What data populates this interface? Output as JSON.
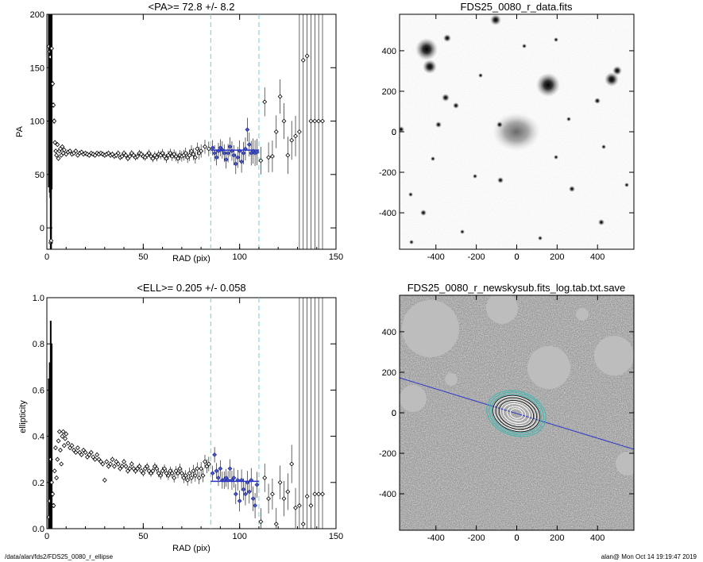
{
  "footer": {
    "path": "/data/alan/fds2/FDS25_0080_r_ellipse",
    "stamp": "alan@  Mon Oct 14 19:19:47 2019"
  },
  "chart_data": [
    {
      "type": "scatter",
      "panel": "pa-profile",
      "title": "<PA>=  72.8 +/-   8.2",
      "xlabel": "RAD (pix)",
      "ylabel": "PA",
      "xlim": [
        0,
        150
      ],
      "ylim": [
        -20,
        200
      ],
      "xticks": [
        "0",
        "50",
        "100",
        "150"
      ],
      "yticks": [
        "0",
        "50",
        "100",
        "150",
        "200"
      ],
      "vlines": [
        85,
        110
      ],
      "fit": {
        "x": [
          85,
          110
        ],
        "y": 72.8
      },
      "series": [
        {
          "points": [
            [
              1.0,
              170
            ],
            [
              1.5,
              165
            ],
            [
              1.8,
              160
            ],
            [
              2.0,
              -14
            ],
            [
              2.2,
              -12
            ],
            [
              2.5,
              168
            ],
            [
              3.0,
              135
            ],
            [
              3.4,
              115
            ],
            [
              3.8,
              100
            ],
            [
              4.2,
              80
            ],
            [
              4.6,
              72
            ],
            [
              5.0,
              68
            ],
            [
              5.5,
              78
            ],
            [
              6.0,
              65
            ],
            [
              6.5,
              72
            ],
            [
              7.0,
              74
            ],
            [
              7.5,
              68
            ],
            [
              8.0,
              76
            ],
            [
              8.5,
              70
            ],
            [
              9.0,
              73
            ],
            [
              10,
              69
            ],
            [
              11,
              71
            ],
            [
              12,
              72
            ],
            [
              13,
              69
            ],
            [
              14,
              70
            ],
            [
              15,
              72
            ],
            [
              16,
              68
            ],
            [
              17,
              70
            ],
            [
              18,
              71
            ],
            [
              19,
              69
            ],
            [
              20,
              70
            ],
            [
              21,
              69
            ],
            [
              22,
              68
            ],
            [
              23,
              70
            ],
            [
              24,
              69
            ],
            [
              25,
              68
            ],
            [
              26,
              70
            ],
            [
              27,
              69
            ],
            [
              28,
              70
            ],
            [
              29,
              69
            ],
            [
              30,
              68
            ],
            [
              31,
              69
            ],
            [
              32,
              70
            ],
            [
              33,
              68
            ],
            [
              34,
              69
            ],
            [
              35,
              67
            ],
            [
              36,
              68
            ],
            [
              37,
              70
            ],
            [
              38,
              66
            ],
            [
              39,
              67
            ],
            [
              40,
              70
            ],
            [
              41,
              68
            ],
            [
              42,
              65
            ],
            [
              43,
              67
            ],
            [
              44,
              70
            ],
            [
              45,
              68
            ],
            [
              46,
              66
            ],
            [
              47,
              67
            ],
            [
              48,
              70
            ],
            [
              49,
              69
            ],
            [
              50,
              67
            ],
            [
              51,
              66
            ],
            [
              52,
              68
            ],
            [
              53,
              70
            ],
            [
              54,
              67
            ],
            [
              55,
              65
            ],
            [
              56,
              68
            ],
            [
              57,
              66
            ],
            [
              58,
              69
            ],
            [
              59,
              68
            ],
            [
              60,
              70
            ],
            [
              61,
              67
            ],
            [
              62,
              65
            ],
            [
              63,
              68
            ],
            [
              64,
              70
            ],
            [
              65,
              67
            ],
            [
              66,
              69
            ],
            [
              67,
              67
            ],
            [
              68,
              65
            ],
            [
              69,
              68
            ],
            [
              70,
              67
            ],
            [
              71,
              68
            ],
            [
              72,
              70
            ],
            [
              73,
              66
            ],
            [
              74,
              68
            ],
            [
              75,
              72
            ],
            [
              76,
              69
            ],
            [
              77,
              66
            ],
            [
              78,
              74
            ],
            [
              79,
              70
            ],
            [
              80,
              72
            ],
            [
              82,
              76
            ],
            [
              84,
              74
            ],
            [
              86,
              75
            ],
            [
              87,
              70
            ],
            [
              88,
              66
            ],
            [
              89,
              72
            ],
            [
              90,
              75
            ],
            [
              91,
              73
            ],
            [
              92,
              70
            ],
            [
              93,
              64
            ],
            [
              94,
              70
            ],
            [
              95,
              76
            ],
            [
              96,
              72
            ],
            [
              97,
              68
            ],
            [
              98,
              60
            ],
            [
              99,
              66
            ],
            [
              100,
              72
            ],
            [
              101,
              62
            ],
            [
              102,
              70
            ],
            [
              103,
              74
            ],
            [
              104,
              92
            ],
            [
              105,
              78
            ],
            [
              106,
              70
            ],
            [
              107,
              72
            ],
            [
              108,
              70
            ],
            [
              109,
              71
            ],
            [
              111,
              63
            ],
            [
              113,
              118
            ],
            [
              115,
              66
            ],
            [
              117,
              67
            ],
            [
              119,
              90
            ],
            [
              121,
              123
            ],
            [
              123,
              100
            ],
            [
              125,
              68
            ],
            [
              127,
              82
            ],
            [
              129,
              86
            ],
            [
              131,
              90
            ],
            [
              133,
              157
            ],
            [
              135,
              161
            ],
            [
              137,
              100
            ],
            [
              139,
              100
            ],
            [
              141,
              100
            ],
            [
              143,
              100
            ]
          ]
        }
      ]
    },
    {
      "type": "scatter",
      "panel": "ellipticity-profile",
      "title": "<ELL>= 0.205 +/-  0.058",
      "xlabel": "RAD (pix)",
      "ylabel": "ellipticity",
      "xlim": [
        0,
        150
      ],
      "ylim": [
        0.0,
        1.0
      ],
      "xticks": [
        "0",
        "50",
        "100",
        "150"
      ],
      "yticks": [
        "0.0",
        "0.2",
        "0.4",
        "0.6",
        "0.8",
        "1.0"
      ],
      "vlines": [
        85,
        110
      ],
      "fit": {
        "x": [
          85,
          110
        ],
        "y": 0.205
      },
      "series": [
        {
          "points": [
            [
              1.0,
              0.05
            ],
            [
              1.5,
              0.12
            ],
            [
              2.0,
              0.3
            ],
            [
              2.5,
              0.2
            ],
            [
              3.0,
              0.15
            ],
            [
              3.5,
              0.1
            ],
            [
              4.0,
              0.25
            ],
            [
              4.5,
              0.35
            ],
            [
              5.0,
              0.22
            ],
            [
              5.5,
              0.3
            ],
            [
              6.0,
              0.38
            ],
            [
              6.5,
              0.42
            ],
            [
              7.0,
              0.34
            ],
            [
              7.5,
              0.28
            ],
            [
              8.0,
              0.4
            ],
            [
              8.5,
              0.42
            ],
            [
              9.0,
              0.36
            ],
            [
              9.5,
              0.39
            ],
            [
              10,
              0.41
            ],
            [
              11,
              0.37
            ],
            [
              12,
              0.35
            ],
            [
              13,
              0.36
            ],
            [
              14,
              0.34
            ],
            [
              15,
              0.33
            ],
            [
              16,
              0.35
            ],
            [
              17,
              0.33
            ],
            [
              18,
              0.32
            ],
            [
              19,
              0.34
            ],
            [
              20,
              0.33
            ],
            [
              21,
              0.31
            ],
            [
              22,
              0.32
            ],
            [
              23,
              0.33
            ],
            [
              24,
              0.31
            ],
            [
              25,
              0.3
            ],
            [
              26,
              0.32
            ],
            [
              27,
              0.3
            ],
            [
              28,
              0.29
            ],
            [
              29,
              0.28
            ],
            [
              30,
              0.21
            ],
            [
              31,
              0.29
            ],
            [
              32,
              0.27
            ],
            [
              33,
              0.28
            ],
            [
              34,
              0.3
            ],
            [
              35,
              0.27
            ],
            [
              36,
              0.29
            ],
            [
              37,
              0.28
            ],
            [
              38,
              0.26
            ],
            [
              39,
              0.27
            ],
            [
              40,
              0.29
            ],
            [
              41,
              0.27
            ],
            [
              42,
              0.25
            ],
            [
              43,
              0.26
            ],
            [
              44,
              0.28
            ],
            [
              45,
              0.26
            ],
            [
              46,
              0.25
            ],
            [
              47,
              0.26
            ],
            [
              48,
              0.27
            ],
            [
              49,
              0.25
            ],
            [
              50,
              0.24
            ],
            [
              51,
              0.26
            ],
            [
              52,
              0.27
            ],
            [
              53,
              0.25
            ],
            [
              54,
              0.24
            ],
            [
              55,
              0.25
            ],
            [
              56,
              0.27
            ],
            [
              57,
              0.26
            ],
            [
              58,
              0.24
            ],
            [
              59,
              0.23
            ],
            [
              60,
              0.25
            ],
            [
              61,
              0.26
            ],
            [
              62,
              0.24
            ],
            [
              63,
              0.23
            ],
            [
              64,
              0.25
            ],
            [
              65,
              0.24
            ],
            [
              66,
              0.22
            ],
            [
              67,
              0.25
            ],
            [
              68,
              0.24
            ],
            [
              69,
              0.26
            ],
            [
              70,
              0.24
            ],
            [
              71,
              0.22
            ],
            [
              72,
              0.23
            ],
            [
              73,
              0.21
            ],
            [
              74,
              0.24
            ],
            [
              75,
              0.22
            ],
            [
              76,
              0.25
            ],
            [
              77,
              0.23
            ],
            [
              78,
              0.26
            ],
            [
              79,
              0.22
            ],
            [
              80,
              0.26
            ],
            [
              81,
              0.23
            ],
            [
              82,
              0.29
            ],
            [
              83,
              0.27
            ],
            [
              84,
              0.28
            ],
            [
              86,
              0.24
            ],
            [
              87,
              0.32
            ],
            [
              88,
              0.25
            ],
            [
              89,
              0.22
            ],
            [
              90,
              0.26
            ],
            [
              91,
              0.21
            ],
            [
              92,
              0.21
            ],
            [
              93,
              0.22
            ],
            [
              94,
              0.21
            ],
            [
              95,
              0.26
            ],
            [
              96,
              0.21
            ],
            [
              97,
              0.22
            ],
            [
              98,
              0.15
            ],
            [
              99,
              0.21
            ],
            [
              100,
              0.12
            ],
            [
              101,
              0.21
            ],
            [
              102,
              0.17
            ],
            [
              103,
              0.15
            ],
            [
              104,
              0.2
            ],
            [
              105,
              0.16
            ],
            [
              106,
              0.21
            ],
            [
              107,
              0.13
            ],
            [
              108,
              0.1
            ],
            [
              109,
              0.19
            ],
            [
              111,
              0.03
            ],
            [
              113,
              0.22
            ],
            [
              115,
              0.13
            ],
            [
              117,
              0.15
            ],
            [
              119,
              0.02
            ],
            [
              121,
              0.2
            ],
            [
              123,
              0.13
            ],
            [
              125,
              0.16
            ],
            [
              127,
              0.28
            ],
            [
              129,
              0.09
            ],
            [
              131,
              0.1
            ],
            [
              133,
              0.02
            ],
            [
              135,
              0.14
            ],
            [
              137,
              0.1
            ],
            [
              139,
              0.15
            ],
            [
              141,
              0.15
            ],
            [
              143,
              0.15
            ]
          ]
        }
      ]
    },
    {
      "type": "image",
      "panel": "data-image",
      "title": "FDS25_0080_r_data.fits",
      "xlim": [
        -580,
        580
      ],
      "ylim": [
        -580,
        580
      ],
      "xticks": [
        "-400",
        "-200",
        "0",
        "200",
        "400"
      ],
      "yticks": [
        "-400",
        "-200",
        "0",
        "200",
        "400"
      ]
    },
    {
      "type": "image",
      "panel": "model-image",
      "title": "FDS25_0080_r_newskysub.fits_log.tab.txt.save",
      "xlim": [
        -580,
        580
      ],
      "ylim": [
        -580,
        580
      ],
      "xticks": [
        "-400",
        "-200",
        "0",
        "200",
        "400"
      ],
      "yticks": [
        "-400",
        "-200",
        "0",
        "200",
        "400"
      ],
      "major_axis_pa": 72.8
    }
  ]
}
